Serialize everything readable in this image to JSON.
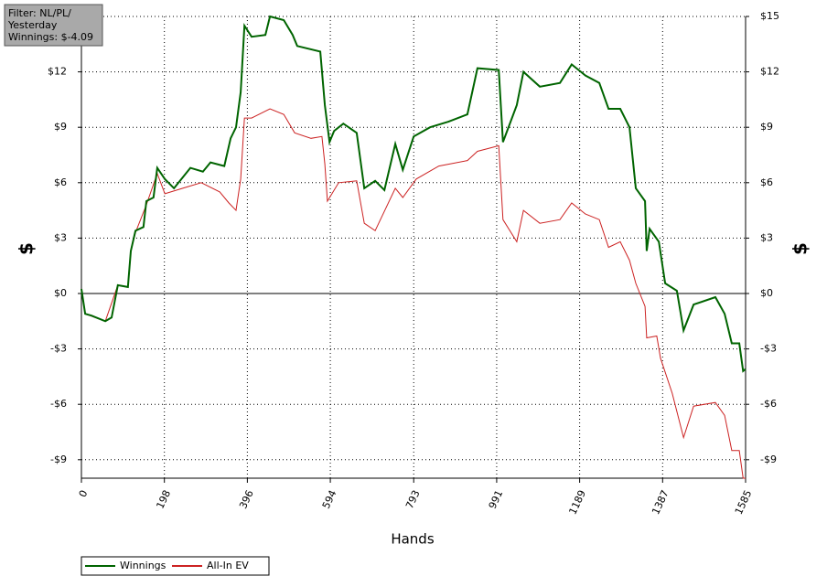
{
  "chart_data": {
    "type": "line",
    "x_label": "Hands",
    "y_label": "$",
    "annotations": [
      "Filter: NL/PL/",
      "Yesterday",
      "Winnings: $-4.09"
    ],
    "xlim": [
      0,
      1585
    ],
    "ylim": [
      -10,
      15
    ],
    "xticks": [
      0,
      198,
      396,
      594,
      793,
      991,
      1189,
      1387,
      1585
    ],
    "yticks": [
      {
        "value": -9,
        "label": "-$9"
      },
      {
        "value": -6,
        "label": "-$6"
      },
      {
        "value": -3,
        "label": "-$3"
      },
      {
        "value": 0,
        "label": "$0"
      },
      {
        "value": 3,
        "label": "$3"
      },
      {
        "value": 6,
        "label": "$6"
      },
      {
        "value": 9,
        "label": "$9"
      },
      {
        "value": 12,
        "label": "$12"
      },
      {
        "value": 15,
        "label": "$15"
      }
    ],
    "grid": true,
    "series": [
      {
        "name": "Winnings",
        "color": "#006400",
        "x": [
          0,
          9,
          24,
          57,
          72,
          87,
          111,
          118,
          129,
          148,
          155,
          172,
          181,
          199,
          221,
          260,
          290,
          308,
          341,
          356,
          369,
          380,
          389,
          406,
          439,
          450,
          483,
          504,
          515,
          570,
          581,
          592,
          603,
          625,
          657,
          675,
          701,
          723,
          749,
          767,
          793,
          832,
          876,
          921,
          945,
          996,
          1006,
          1039,
          1055,
          1094,
          1142,
          1170,
          1203,
          1236,
          1258,
          1286,
          1308,
          1323,
          1345,
          1349,
          1356,
          1378,
          1393,
          1421,
          1437,
          1461,
          1513,
          1535,
          1552,
          1570,
          1579,
          1585
        ],
        "values": [
          0.25,
          -1.1,
          -1.2,
          -1.5,
          -1.3,
          0.45,
          0.35,
          2.3,
          3.4,
          3.6,
          5.0,
          5.2,
          6.8,
          6.2,
          5.7,
          6.8,
          6.6,
          7.1,
          6.9,
          8.4,
          9.0,
          10.9,
          14.5,
          13.9,
          14.0,
          15.0,
          14.8,
          14.0,
          13.4,
          13.1,
          10.2,
          8.2,
          8.8,
          9.2,
          8.7,
          5.7,
          6.1,
          5.6,
          8.1,
          6.7,
          8.5,
          9.0,
          9.3,
          9.7,
          12.2,
          12.1,
          8.2,
          10.2,
          12.0,
          11.2,
          11.4,
          12.4,
          11.8,
          11.4,
          10.0,
          10.0,
          9.0,
          5.7,
          5.0,
          2.3,
          3.5,
          2.8,
          0.55,
          0.15,
          -2.0,
          -0.6,
          -0.2,
          -1.1,
          -2.7,
          -2.7,
          -4.2,
          -4.09
        ]
      },
      {
        "name": "All-In EV",
        "color": "#cc2222",
        "x": [
          0,
          9,
          57,
          87,
          111,
          118,
          129,
          155,
          181,
          199,
          242,
          286,
          330,
          352,
          369,
          380,
          389,
          406,
          450,
          483,
          509,
          548,
          574,
          581,
          587,
          614,
          657,
          675,
          701,
          749,
          767,
          799,
          853,
          921,
          945,
          996,
          1006,
          1039,
          1055,
          1094,
          1142,
          1170,
          1203,
          1236,
          1258,
          1286,
          1308,
          1323,
          1345,
          1349,
          1373,
          1382,
          1410,
          1437,
          1461,
          1513,
          1535,
          1552,
          1570,
          1579,
          1585
        ],
        "values": [
          0.25,
          -1.1,
          -1.5,
          0.45,
          0.35,
          2.3,
          3.3,
          4.8,
          6.5,
          5.4,
          5.7,
          6.0,
          5.5,
          4.9,
          4.5,
          6.2,
          9.5,
          9.5,
          10.0,
          9.7,
          8.7,
          8.4,
          8.5,
          7.0,
          5.0,
          6.0,
          6.1,
          3.8,
          3.4,
          5.7,
          5.2,
          6.2,
          6.9,
          7.2,
          7.7,
          8.0,
          4.0,
          2.8,
          4.5,
          3.8,
          4.0,
          4.9,
          4.3,
          4.0,
          2.5,
          2.8,
          1.8,
          0.55,
          -0.7,
          -2.4,
          -2.3,
          -3.5,
          -5.4,
          -7.8,
          -6.1,
          -5.9,
          -6.6,
          -8.5,
          -8.5,
          -10.0,
          -10.0
        ]
      }
    ]
  }
}
